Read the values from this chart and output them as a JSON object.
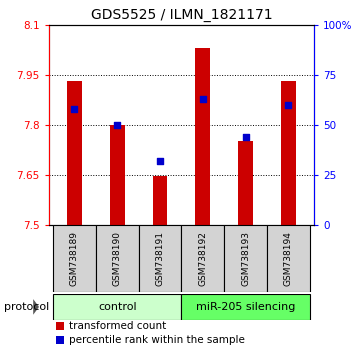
{
  "title": "GDS5525 / ILMN_1821171",
  "samples": [
    "GSM738189",
    "GSM738190",
    "GSM738191",
    "GSM738192",
    "GSM738193",
    "GSM738194"
  ],
  "red_values": [
    7.93,
    7.8,
    7.645,
    8.03,
    7.75,
    7.93
  ],
  "blue_percentiles": [
    58,
    50,
    32,
    63,
    44,
    60
  ],
  "baseline": 7.5,
  "ylim_left": [
    7.5,
    8.1
  ],
  "ylim_right": [
    0,
    100
  ],
  "yticks_left": [
    7.5,
    7.65,
    7.8,
    7.95,
    8.1
  ],
  "yticks_right": [
    0,
    25,
    50,
    75,
    100
  ],
  "ytick_labels_right": [
    "0",
    "25",
    "50",
    "75",
    "100%"
  ],
  "groups": [
    {
      "label": "control",
      "indices": [
        0,
        1,
        2
      ],
      "color": "#ccffcc"
    },
    {
      "label": "miR-205 silencing",
      "indices": [
        3,
        4,
        5
      ],
      "color": "#66ff66"
    }
  ],
  "bar_color": "#cc0000",
  "dot_color": "#0000cc",
  "bar_width": 0.35,
  "title_fontsize": 10,
  "tick_fontsize": 7.5,
  "sample_fontsize": 6.5,
  "legend_fontsize": 7.5,
  "proto_fontsize": 8,
  "background_color": "#ffffff",
  "legend_red_label": "transformed count",
  "legend_blue_label": "percentile rank within the sample",
  "protocol_label": "protocol"
}
